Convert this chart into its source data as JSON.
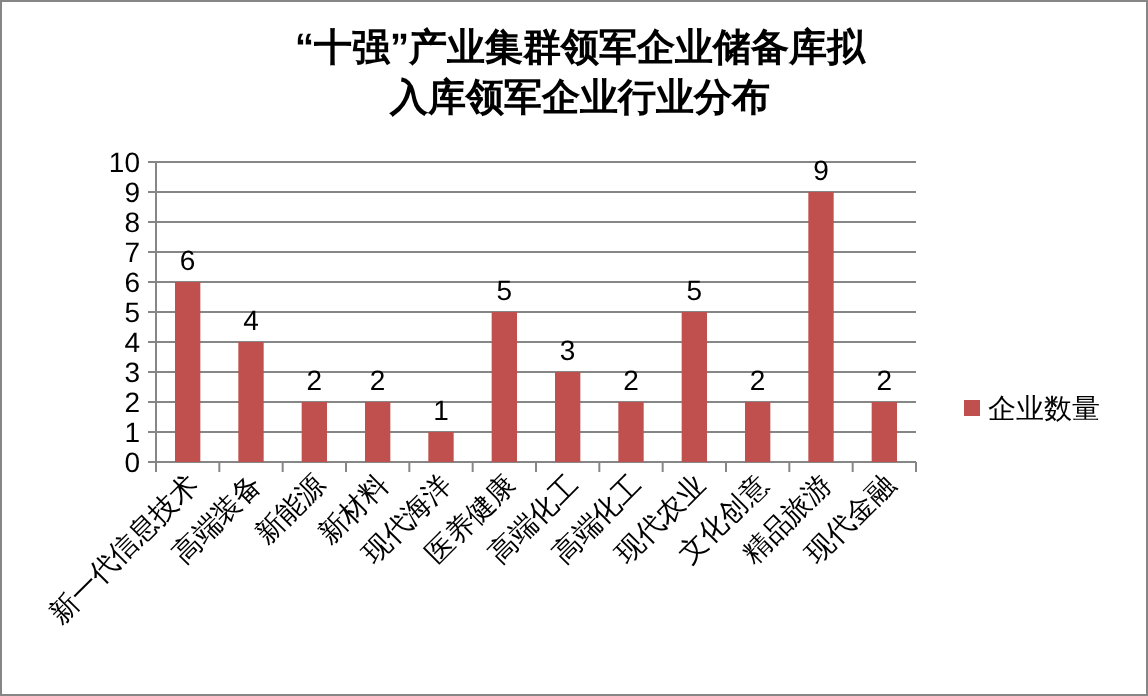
{
  "chart_data": {
    "type": "bar",
    "title": "“十强”产业集群领军企业储备库拟入库领军企业行业分布",
    "categories": [
      "新一代信息技术",
      "高端装备",
      "新能源",
      "新材料",
      "现代海洋",
      "医养健康",
      "高端化工",
      "高端化工",
      "现代农业",
      "文化创意",
      "精品旅游",
      "现代金融"
    ],
    "series": [
      {
        "name": "企业数量",
        "color": "#c0504d",
        "values": [
          6,
          4,
          2,
          2,
          1,
          5,
          3,
          2,
          5,
          2,
          9,
          2
        ]
      }
    ],
    "ylim": [
      0,
      10
    ],
    "yticks": [
      0,
      1,
      2,
      3,
      4,
      5,
      6,
      7,
      8,
      9,
      10
    ],
    "grid": "y",
    "legend": "right",
    "data_labels": true
  }
}
